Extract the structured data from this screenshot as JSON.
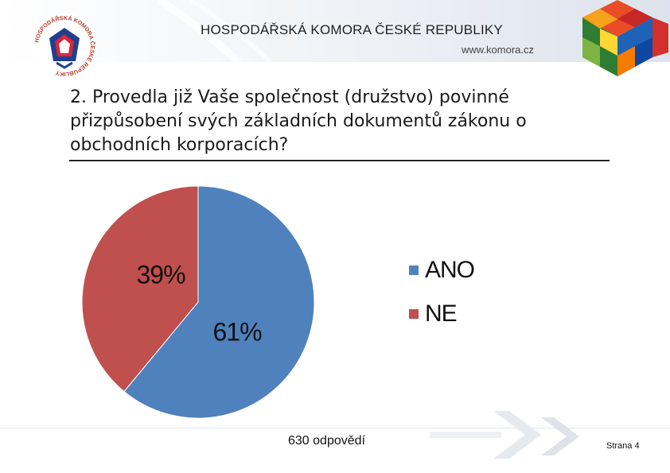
{
  "header": {
    "org_name": "HOSPODÁŘSKÁ KOMORA ČESKÉ REPUBLIKY",
    "url": "www.komora.cz",
    "logo_text": "HOSPODÁŘSKÁ KOMORA ČESKÉ REPUBLIKY"
  },
  "question": {
    "text": "2. Provedla již Vaše společnost (družstvo) povinné přizpůsobení svých základních dokumentů zákonu o obchodních korporacích?"
  },
  "chart_data": {
    "type": "pie",
    "slices": [
      {
        "label": "ANO",
        "value": 61,
        "display": "61%",
        "color": "#4f81bd"
      },
      {
        "label": "NE",
        "value": 39,
        "display": "39%",
        "color": "#c0504d"
      }
    ],
    "legend": [
      "ANO",
      "NE"
    ],
    "legend_position": "right"
  },
  "footer": {
    "responses": "630 odpovědí",
    "page": "Strana 4"
  }
}
